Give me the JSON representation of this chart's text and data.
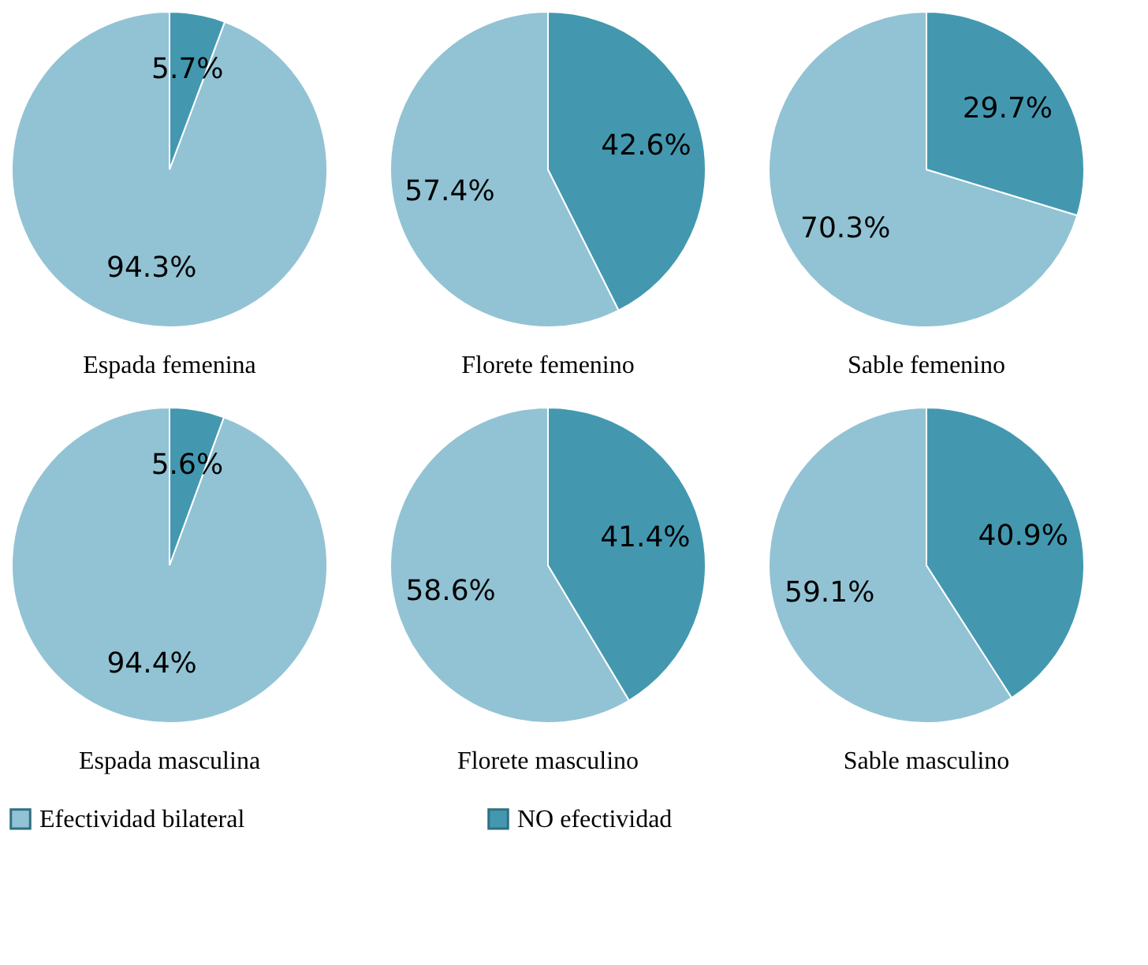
{
  "chart_data": [
    {
      "type": "pie",
      "title": "Espada femenina",
      "categories": [
        "Efectividad bilateral",
        "NO efectividad"
      ],
      "values": [
        94.3,
        5.7
      ],
      "value_labels": [
        "94.3%",
        "5.7%"
      ],
      "colors": [
        "#92c3d4",
        "#4398b0"
      ],
      "legend": "bottom"
    },
    {
      "type": "pie",
      "title": "Florete femenino",
      "categories": [
        null,
        null
      ],
      "values": [
        57.4,
        42.6
      ],
      "value_labels": [
        "57.4%",
        "42.6%"
      ],
      "colors": [
        "#92c3d4",
        "#4398b0"
      ]
    },
    {
      "type": "pie",
      "title": "Sable femenino",
      "categories": [
        null,
        null
      ],
      "values": [
        70.3,
        29.7
      ],
      "value_labels": [
        "70.3%",
        "29.7%"
      ],
      "colors": [
        "#92c3d4",
        "#4398b0"
      ]
    },
    {
      "type": "pie",
      "title": "Espada masculina",
      "categories": [
        null,
        null
      ],
      "values": [
        94.4,
        5.6
      ],
      "value_labels": [
        "94.4%",
        "5.6%"
      ],
      "colors": [
        "#92c3d4",
        "#4398b0"
      ]
    },
    {
      "type": "pie",
      "title": "Florete masculino",
      "categories": [
        null,
        null
      ],
      "values": [
        58.6,
        41.4
      ],
      "value_labels": [
        "58.6%",
        "41.4%"
      ],
      "colors": [
        "#92c3d4",
        "#4398b0"
      ]
    },
    {
      "type": "pie",
      "title": "Sable masculino",
      "categories": [
        null,
        null
      ],
      "values": [
        59.1,
        40.9
      ],
      "value_labels": [
        "59.1%",
        "40.9%"
      ],
      "colors": [
        "#92c3d4",
        "#4398b0"
      ]
    }
  ]
}
